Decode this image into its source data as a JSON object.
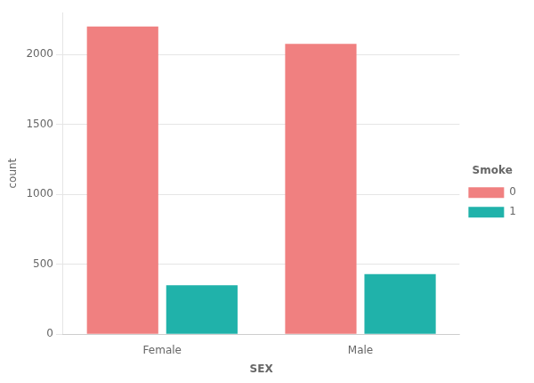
{
  "chart_data": {
    "type": "bar",
    "categories": [
      "Female",
      "Male"
    ],
    "series": [
      {
        "name": "0",
        "color": "#F08080",
        "values": [
          2200,
          2075
        ]
      },
      {
        "name": "1",
        "color": "#20B2AA",
        "values": [
          350,
          430
        ]
      }
    ],
    "xlabel": "SEX",
    "ylabel": "count",
    "ylim": [
      0,
      2300
    ],
    "yticks": [
      0,
      500,
      1000,
      1500,
      2000
    ],
    "grid": true,
    "legend": "right",
    "legend_title": "Smoke"
  }
}
